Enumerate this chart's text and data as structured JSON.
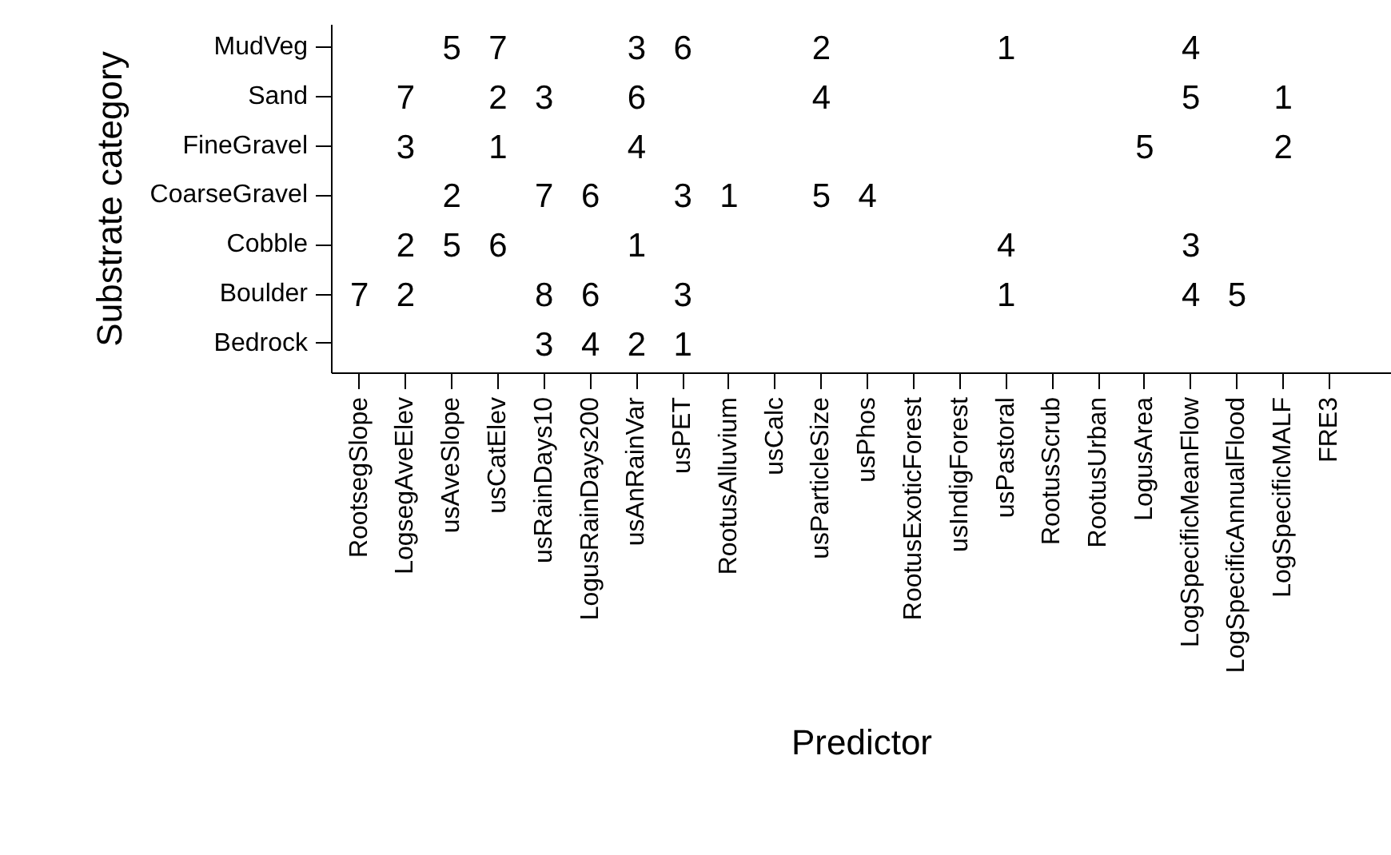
{
  "chart_data": {
    "type": "heatmap",
    "data_labels": true,
    "xlabel": "Predictor",
    "ylabel": "Substrate category",
    "categories": [
      "RootsegSlope",
      "LogsegAveElev",
      "usAveSlope",
      "usCatElev",
      "usRainDays10",
      "LogusRainDays200",
      "usAnRainVar",
      "usPET",
      "RootusAlluvium",
      "usCalc",
      "usParticleSize",
      "usPhos",
      "RootusExoticForest",
      "usIndigForest",
      "usPastoral",
      "RootusScrub",
      "RootusUrban",
      "LogusArea",
      "LogSpecificMeanFlow",
      "LogSpecificAnnualFlood",
      "LogSpecificMALF",
      "FRE3"
    ],
    "y_categories": [
      "MudVeg",
      "Sand",
      "FineGravel",
      "CoarseGravel",
      "Cobble",
      "Boulder",
      "Bedrock"
    ],
    "cells": [
      [
        null,
        null,
        5,
        7,
        null,
        null,
        3,
        6,
        null,
        null,
        2,
        null,
        null,
        null,
        1,
        null,
        null,
        null,
        4,
        null,
        null,
        null
      ],
      [
        null,
        7,
        null,
        2,
        3,
        null,
        6,
        null,
        null,
        null,
        4,
        null,
        null,
        null,
        null,
        null,
        null,
        null,
        5,
        null,
        1,
        null
      ],
      [
        null,
        3,
        null,
        1,
        null,
        null,
        4,
        null,
        null,
        null,
        null,
        null,
        null,
        null,
        null,
        null,
        null,
        5,
        null,
        null,
        2,
        null
      ],
      [
        null,
        null,
        2,
        null,
        7,
        6,
        null,
        3,
        1,
        null,
        5,
        4,
        null,
        null,
        null,
        null,
        null,
        null,
        null,
        null,
        null,
        null
      ],
      [
        null,
        2,
        5,
        6,
        null,
        null,
        1,
        null,
        null,
        null,
        null,
        null,
        null,
        null,
        4,
        null,
        null,
        null,
        3,
        null,
        null,
        null
      ],
      [
        7,
        2,
        null,
        null,
        8,
        6,
        null,
        3,
        null,
        null,
        null,
        null,
        null,
        null,
        1,
        null,
        null,
        null,
        4,
        5,
        null,
        null
      ],
      [
        null,
        null,
        null,
        null,
        3,
        4,
        2,
        1,
        null,
        null,
        null,
        null,
        null,
        null,
        null,
        null,
        null,
        null,
        null,
        null,
        null,
        null
      ]
    ]
  }
}
